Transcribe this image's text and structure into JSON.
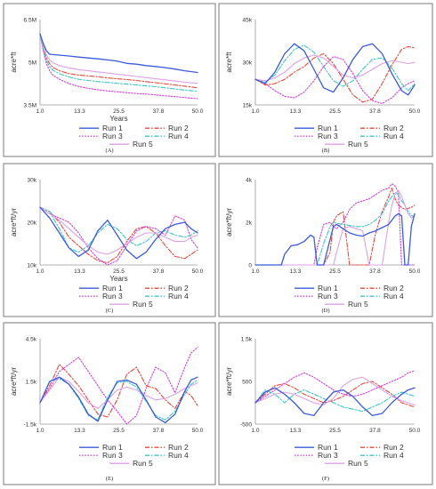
{
  "figure": {
    "colors": {
      "Run 1": "#3b5bdb",
      "Run 2": "#e8483a",
      "Run 3": "#d63ce0",
      "Run 4": "#40c4c8",
      "Run 5": "#dda0e6"
    },
    "dash": {
      "Run 1": "solid",
      "Run 2": "dash-dot",
      "Run 3": "dotted",
      "Run 4": "dash-dot",
      "Run 5": "solid"
    },
    "legend_order": [
      "Run 1",
      "Run 2",
      "Run 3",
      "Run 4",
      "Run 5"
    ]
  },
  "chart_data": [
    {
      "panel": "A",
      "caption": "(A)",
      "type": "line",
      "xlabel": "Years",
      "ylabel": "acre*ft",
      "xlim": [
        1,
        50
      ],
      "ylim": [
        3500000,
        6500000
      ],
      "xticks": [
        1,
        13.3,
        25.5,
        37.8,
        50
      ],
      "xtick_labels": [
        "1.0",
        "13.3",
        "25.5",
        "37.8",
        "50.0"
      ],
      "yticks": [
        3500000,
        5000000,
        6500000
      ],
      "ytick_labels": [
        "3.5M",
        "5M",
        "6.5M"
      ],
      "x": [
        1,
        2,
        3,
        4,
        5,
        7,
        10,
        13,
        16,
        19,
        22,
        25,
        28,
        31,
        34,
        37,
        40,
        43,
        46,
        50
      ],
      "series": [
        {
          "name": "Run 1",
          "values": [
            6000000,
            5650000,
            5400000,
            5280000,
            5270000,
            5250000,
            5220000,
            5180000,
            5150000,
            5120000,
            5080000,
            5040000,
            4960000,
            4930000,
            4880000,
            4850000,
            4810000,
            4760000,
            4700000,
            4640000
          ]
        },
        {
          "name": "Run 2",
          "values": [
            6000000,
            5500000,
            5150000,
            4950000,
            4820000,
            4700000,
            4600000,
            4550000,
            4520000,
            4490000,
            4450000,
            4420000,
            4390000,
            4360000,
            4320000,
            4280000,
            4240000,
            4200000,
            4160000,
            4100000
          ]
        },
        {
          "name": "Run 3",
          "values": [
            6000000,
            5400000,
            4950000,
            4700000,
            4550000,
            4400000,
            4250000,
            4150000,
            4080000,
            4030000,
            3990000,
            3960000,
            3930000,
            3900000,
            3880000,
            3850000,
            3820000,
            3790000,
            3760000,
            3720000
          ]
        },
        {
          "name": "Run 4",
          "values": [
            6000000,
            5450000,
            5050000,
            4850000,
            4720000,
            4600000,
            4480000,
            4400000,
            4360000,
            4320000,
            4290000,
            4260000,
            4230000,
            4200000,
            4170000,
            4140000,
            4100000,
            4060000,
            4020000,
            3980000
          ]
        },
        {
          "name": "Run 5",
          "values": [
            6000000,
            5550000,
            5250000,
            5080000,
            4980000,
            4880000,
            4800000,
            4740000,
            4700000,
            4660000,
            4620000,
            4580000,
            4540000,
            4500000,
            4460000,
            4420000,
            4380000,
            4340000,
            4300000,
            4260000
          ]
        }
      ]
    },
    {
      "panel": "B",
      "caption": "(B)",
      "type": "line",
      "xlabel": "",
      "ylabel": "acre*ft",
      "xlim": [
        1,
        50
      ],
      "ylim": [
        15000,
        45000
      ],
      "xticks": [
        1,
        13.3,
        25.5,
        37.8,
        50
      ],
      "xtick_labels": [
        "1.0",
        "13.3",
        "25.5",
        "37.8",
        "50.0"
      ],
      "yticks": [
        15000,
        30000,
        45000
      ],
      "ytick_labels": [
        "15k",
        "30k",
        "45k"
      ],
      "x": [
        1,
        4,
        7,
        10,
        13,
        16,
        19,
        22,
        25,
        28,
        31,
        34,
        37,
        40,
        43,
        46,
        48,
        50
      ],
      "series": [
        {
          "name": "Run 1",
          "values": [
            24000,
            22500,
            26500,
            33000,
            36500,
            34000,
            27500,
            21000,
            19500,
            24500,
            31000,
            35500,
            36500,
            33000,
            26000,
            20000,
            18500,
            22000
          ]
        },
        {
          "name": "Run 2",
          "values": [
            24000,
            22000,
            22500,
            24000,
            26500,
            28500,
            31500,
            33000,
            29500,
            24000,
            18500,
            16000,
            17000,
            22500,
            29000,
            34500,
            35500,
            35000
          ]
        },
        {
          "name": "Run 3",
          "values": [
            24000,
            22500,
            20000,
            18000,
            17500,
            19500,
            23500,
            28500,
            32000,
            31000,
            26000,
            20000,
            16500,
            15500,
            17500,
            21000,
            22500,
            23500
          ]
        },
        {
          "name": "Run 4",
          "values": [
            24000,
            23000,
            25500,
            30500,
            34500,
            36000,
            33500,
            28500,
            23500,
            21500,
            23500,
            27500,
            31000,
            31500,
            28000,
            22500,
            20000,
            22500
          ]
        },
        {
          "name": "Run 5",
          "values": [
            24000,
            23500,
            24500,
            26500,
            29500,
            31500,
            32500,
            31500,
            28500,
            25500,
            24500,
            25500,
            27500,
            29500,
            30500,
            30000,
            29500,
            30000
          ]
        }
      ]
    },
    {
      "panel": "C",
      "caption": "(C)",
      "type": "line",
      "xlabel": "Years",
      "ylabel": "acre*ft/yr",
      "xlim": [
        1,
        50
      ],
      "ylim": [
        10000,
        30000
      ],
      "xticks": [
        1,
        13.3,
        25.5,
        37.8,
        50
      ],
      "xtick_labels": [
        "1.0",
        "13.3",
        "25.5",
        "37.8",
        "50.0"
      ],
      "yticks": [
        10000,
        20000,
        30000
      ],
      "ytick_labels": [
        "10k",
        "20k",
        "30k"
      ],
      "x": [
        1,
        4,
        7,
        10,
        13,
        16,
        19,
        22,
        25,
        28,
        31,
        34,
        37,
        40,
        43,
        46,
        48,
        50
      ],
      "series": [
        {
          "name": "Run 1",
          "values": [
            23500,
            21000,
            17500,
            14000,
            12000,
            13500,
            18000,
            20500,
            17000,
            13500,
            11500,
            13000,
            16000,
            18500,
            19500,
            20000,
            18500,
            17500
          ]
        },
        {
          "name": "Run 2",
          "values": [
            23500,
            22500,
            20000,
            16500,
            14500,
            12500,
            11000,
            10500,
            12000,
            15500,
            18500,
            19000,
            17500,
            14500,
            12000,
            11500,
            12500,
            13500
          ]
        },
        {
          "name": "Run 3",
          "values": [
            23500,
            22000,
            21000,
            20000,
            17500,
            14000,
            11500,
            10000,
            11000,
            14500,
            18000,
            19000,
            18500,
            17000,
            21500,
            20500,
            16000,
            14000
          ]
        },
        {
          "name": "Run 4",
          "values": [
            23500,
            22500,
            18500,
            14000,
            13000,
            14500,
            17500,
            19500,
            18500,
            16000,
            14500,
            15500,
            17500,
            18000,
            17000,
            16500,
            17000,
            18000
          ]
        },
        {
          "name": "Run 5",
          "values": [
            23500,
            22000,
            20500,
            18500,
            16500,
            14500,
            13000,
            12500,
            13500,
            15000,
            16500,
            17500,
            17500,
            16500,
            15500,
            15500,
            16500,
            17000
          ]
        }
      ]
    },
    {
      "panel": "D",
      "caption": "(D)",
      "type": "line",
      "xlabel": "",
      "ylabel": "acre*ft/yr",
      "xlim": [
        1,
        50
      ],
      "ylim": [
        0,
        4000
      ],
      "xticks": [
        1,
        13.3,
        25.5,
        37.8,
        50
      ],
      "xtick_labels": [
        "1.0",
        "13.3",
        "25.5",
        "37.8",
        "50.0"
      ],
      "yticks": [
        0,
        2000,
        4000
      ],
      "ytick_labels": [
        "0",
        "2k",
        "4k"
      ],
      "x": [
        1,
        4,
        7,
        9,
        10,
        12,
        14,
        16,
        18,
        19,
        20,
        22,
        24,
        25,
        26,
        28,
        30,
        32,
        34,
        36,
        38,
        40,
        42,
        43,
        44,
        45,
        46,
        47,
        48,
        49,
        50
      ],
      "series": [
        {
          "name": "Run 1",
          "values": [
            0,
            0,
            0,
            0,
            500,
            900,
            950,
            1100,
            1400,
            1300,
            0,
            0,
            1200,
            1800,
            1900,
            1700,
            1500,
            1400,
            1350,
            1500,
            1600,
            1750,
            1900,
            2100,
            2300,
            2400,
            2300,
            0,
            0,
            1800,
            2400
          ]
        },
        {
          "name": "Run 2",
          "values": [
            0,
            0,
            0,
            0,
            0,
            0,
            0,
            0,
            0,
            0,
            0,
            0,
            600,
            2000,
            2300,
            2500,
            0,
            0,
            0,
            0,
            1500,
            2500,
            3200,
            3600,
            3100,
            2800,
            2700,
            2600,
            2650,
            2700,
            2800
          ]
        },
        {
          "name": "Run 3",
          "values": [
            0,
            0,
            0,
            0,
            0,
            0,
            0,
            0,
            0,
            0,
            800,
            1900,
            2000,
            1800,
            1700,
            2000,
            2600,
            2900,
            3000,
            3100,
            3300,
            3500,
            3600,
            3800,
            3700,
            3400,
            0,
            0,
            0,
            0,
            0
          ]
        },
        {
          "name": "Run 4",
          "values": [
            0,
            0,
            0,
            0,
            0,
            0,
            0,
            0,
            0,
            0,
            0,
            1000,
            1800,
            2000,
            1950,
            1900,
            1850,
            1800,
            1800,
            1900,
            2100,
            2400,
            3000,
            3200,
            3400,
            3300,
            3000,
            2800,
            2500,
            2300,
            2300
          ]
        },
        {
          "name": "Run 5",
          "values": [
            0,
            0,
            0,
            0,
            0,
            0,
            0,
            0,
            0,
            0,
            0,
            0,
            0,
            0,
            600,
            1700,
            1800,
            1700,
            1600,
            0,
            0,
            0,
            2000,
            2800,
            3300,
            3500,
            3200,
            2800,
            2400,
            2200,
            2300
          ]
        }
      ]
    },
    {
      "panel": "E",
      "caption": "(E)",
      "type": "line",
      "xlabel": "",
      "ylabel": "acre*ft/yr",
      "xlim": [
        1,
        50
      ],
      "ylim": [
        -1500,
        4500
      ],
      "xticks": [
        1,
        13.3,
        25.5,
        37.8,
        50
      ],
      "xtick_labels": [
        "1.0",
        "13.3",
        "25.5",
        "37.8",
        "50.0"
      ],
      "yticks": [
        -1500,
        1500,
        4500
      ],
      "ytick_labels": [
        "-1.5k",
        "1.5k",
        "4.5k"
      ],
      "x": [
        1,
        4,
        7,
        10,
        13,
        16,
        19,
        22,
        25,
        28,
        31,
        34,
        37,
        40,
        43,
        46,
        48,
        50
      ],
      "series": [
        {
          "name": "Run 1",
          "values": [
            0,
            1500,
            1800,
            1300,
            400,
            -800,
            -1300,
            200,
            1500,
            1600,
            1300,
            200,
            -1000,
            -1400,
            -800,
            800,
            1600,
            1800
          ]
        },
        {
          "name": "Run 2",
          "values": [
            0,
            1200,
            2700,
            2000,
            1200,
            200,
            -800,
            -1000,
            200,
            2000,
            2500,
            1200,
            1000,
            200,
            -400,
            800,
            500,
            -200
          ]
        },
        {
          "name": "Run 3",
          "values": [
            0,
            1000,
            2200,
            2700,
            3200,
            2200,
            1200,
            200,
            -600,
            -1500,
            -900,
            1000,
            2500,
            2100,
            700,
            2500,
            3500,
            3900
          ]
        },
        {
          "name": "Run 4",
          "values": [
            0,
            1500,
            1700,
            1300,
            300,
            -900,
            -1200,
            400,
            1400,
            1500,
            1100,
            100,
            -900,
            -1200,
            -600,
            600,
            1300,
            1600
          ]
        },
        {
          "name": "Run 5",
          "values": [
            0,
            900,
            1800,
            1500,
            800,
            0,
            -400,
            200,
            900,
            1100,
            900,
            500,
            200,
            300,
            600,
            1000,
            1200,
            1400
          ]
        }
      ]
    },
    {
      "panel": "F",
      "caption": "(F)",
      "type": "line",
      "xlabel": "",
      "ylabel": "acre*ft/yr",
      "xlim": [
        1,
        50
      ],
      "ylim": [
        -500,
        1500
      ],
      "xticks": [
        1,
        13.3,
        25.5,
        37.8,
        50
      ],
      "xtick_labels": [
        "1.0",
        "13.3",
        "25.5",
        "37.8",
        "50.0"
      ],
      "yticks": [
        -500,
        500,
        1500
      ],
      "ytick_labels": [
        "-500",
        "500",
        "1.5k"
      ],
      "x": [
        1,
        4,
        7,
        10,
        13,
        16,
        19,
        22,
        25,
        28,
        31,
        34,
        37,
        40,
        43,
        46,
        48,
        50
      ],
      "series": [
        {
          "name": "Run 1",
          "values": [
            0,
            250,
            350,
            200,
            0,
            -250,
            -300,
            0,
            250,
            300,
            150,
            -100,
            -300,
            -250,
            0,
            200,
            300,
            350
          ]
        },
        {
          "name": "Run 2",
          "values": [
            0,
            200,
            400,
            450,
            350,
            200,
            100,
            0,
            50,
            150,
            300,
            450,
            500,
            350,
            200,
            0,
            -50,
            -100
          ]
        },
        {
          "name": "Run 3",
          "values": [
            0,
            150,
            300,
            450,
            600,
            700,
            600,
            450,
            300,
            200,
            150,
            200,
            300,
            400,
            500,
            600,
            700,
            750
          ]
        },
        {
          "name": "Run 4",
          "values": [
            0,
            300,
            200,
            0,
            200,
            300,
            200,
            100,
            0,
            -100,
            -150,
            -200,
            -100,
            0,
            150,
            250,
            200,
            150
          ]
        },
        {
          "name": "Run 5",
          "values": [
            0,
            100,
            200,
            250,
            200,
            100,
            0,
            -50,
            100,
            400,
            550,
            600,
            450,
            300,
            150,
            50,
            0,
            -50
          ]
        }
      ]
    }
  ]
}
